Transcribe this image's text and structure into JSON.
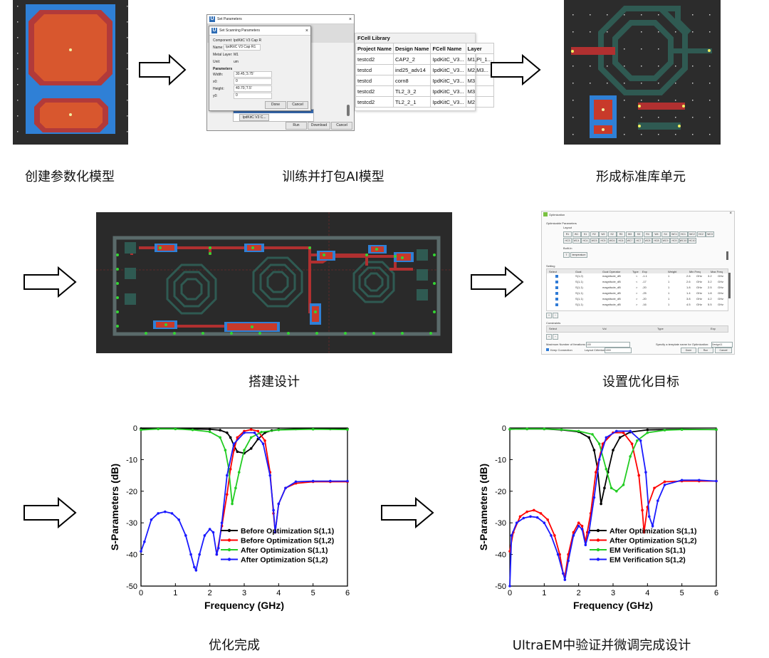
{
  "captions": {
    "c1": "创建参数化模型",
    "c2": "训练并打包AI模型",
    "c3": "形成标准库单元",
    "c4": "搭建设计",
    "c5": "设置优化目标",
    "c6": "优化完成",
    "c7": "UltraEM中验证并微调完成设计"
  },
  "set_params_dialog": {
    "outer_title": "Set Parameters",
    "inner_title": "Set Scanning Parameters",
    "component": "Component: IpdKitC V3 Cap R",
    "name_label": "Name:",
    "name_value": "IpdKitC V3 Cap R1",
    "metal_layer_label": "Metal Layer:",
    "metal_layer_value": "M1",
    "unit_label": "Unit:",
    "unit_value": "um",
    "parameters_label": "Parameters",
    "params": [
      {
        "label": "Width:",
        "value": "30.45,'3.75'"
      },
      {
        "label": "x0:",
        "value": "0"
      },
      {
        "label": "Height:",
        "value": "40.70,'7.5'"
      },
      {
        "label": "y0:",
        "value": "0"
      }
    ],
    "done": "Done",
    "cancel": "Cancel",
    "list_item": "IpdKitC V3 C...",
    "run": "Run",
    "download": "Download",
    "cancel2": "Cancel"
  },
  "fcell_library": {
    "title": "FCell Library",
    "headers": [
      "Project Name",
      "Design Name",
      "FCell Name",
      "Layer"
    ],
    "rows": [
      [
        "testcd2",
        "CAP2_2",
        "IpdKitC_V3...",
        "M1,PI_1..."
      ],
      [
        "testcd",
        "ind25_adv14",
        "IpdKitC_V3...",
        "M2,M3..."
      ],
      [
        "testcd",
        "corn8",
        "IpdKitC_V3...",
        "M3"
      ],
      [
        "testcd2",
        "TL2_3_2",
        "IpdKitC_V3...",
        "M3"
      ],
      [
        "testcd2",
        "TL2_2_1",
        "IpdKitC_V3...",
        "M2"
      ]
    ]
  },
  "optimization_dialog": {
    "title": "Optimization",
    "optimizable_label": "Optimizable Parameters",
    "layout_label": "Layout",
    "chips_row1": [
      "R1",
      "W1",
      "S1",
      "R2",
      "W2",
      "S2",
      "R3",
      "W3",
      "S3",
      "R4",
      "W4",
      "S4",
      "WC1",
      "HC1",
      "WC2",
      "HC2",
      "WC3"
    ],
    "chips_row2": [
      "HC3",
      "WC4",
      "HC4",
      "WC5",
      "HC5",
      "WC6",
      "HC6",
      "WC7",
      "HC7",
      "WC8",
      "HC8",
      "WC9",
      "HC9",
      "WC10",
      "HC10"
    ],
    "builtin_label": "Built-In",
    "builtin_chips": [
      "T",
      "temperature"
    ],
    "setting_label": "Setting",
    "table_headers": [
      "Select",
      "Goal",
      "Goal Operator",
      "Type",
      "Exp",
      "Weight",
      "Min Freq",
      "",
      "Max Freq",
      ""
    ],
    "rows": [
      [
        "S(1,2)",
        "magnitude_dB",
        "<",
        "-1.1",
        "1",
        "2.6",
        "GHz",
        "3.2",
        "GHz"
      ],
      [
        "S(1,1)",
        "magnitude_dB",
        "<",
        "-17",
        "1",
        "2.6",
        "GHz",
        "3.2",
        "GHz"
      ],
      [
        "S(1,1)",
        "magnitude_dB",
        ">",
        "-20",
        "1",
        "1.8",
        "GHz",
        "2.5",
        "GHz"
      ],
      [
        "S(1,1)",
        "magnitude_dB",
        ">",
        "-25",
        "1",
        "1.4",
        "GHz",
        "1.8",
        "GHz"
      ],
      [
        "S(1,1)",
        "magnitude_dB",
        ">",
        "-20",
        "1",
        "3.8",
        "GHz",
        "4.2",
        "GHz"
      ],
      [
        "S(1,1)",
        "magnitude_dB",
        ">",
        "-16",
        "1",
        "4.5",
        "GHz",
        "5.5",
        "GHz"
      ]
    ],
    "constraints_label": "Constraints",
    "constraint_headers": [
      "Select",
      "Vol",
      "Type",
      "Exp"
    ],
    "max_iter_label": "Maximum Number of Iterations:",
    "max_iter_value": "100",
    "template_label": "Specify a template name for Optimization:",
    "template_value": "Design11",
    "keep_connection": "Keep Connection",
    "layout_criterion_label": "Layout Criterion:",
    "layout_criterion_value": "1000",
    "done": "Done",
    "run": "Run",
    "cancel": "Cancel"
  },
  "chart_data": [
    {
      "type": "line",
      "title": "",
      "xlabel": "Frequency (GHz)",
      "ylabel": "S-Parameters (dB)",
      "xlim": [
        0,
        6
      ],
      "ylim": [
        -50,
        0
      ],
      "xticks": [
        "0",
        "1",
        "2",
        "3",
        "4",
        "5",
        "6"
      ],
      "yticks": [
        "0",
        "-10",
        "-20",
        "-30",
        "-40",
        "-50"
      ],
      "legend_position": "bottom-right",
      "series": [
        {
          "name": "Before Optimization S(1,1)",
          "color": "#000000",
          "x": [
            0,
            0.5,
            1,
            1.5,
            2,
            2.3,
            2.5,
            2.6,
            2.7,
            2.8,
            3,
            3.2,
            3.4,
            3.6,
            3.8,
            4,
            4.5,
            5,
            5.5,
            6
          ],
          "y": [
            -0.2,
            -0.2,
            -0.2,
            -0.3,
            -0.4,
            -0.7,
            -1.5,
            -3,
            -5.5,
            -7.5,
            -8,
            -6.5,
            -3.5,
            -1.5,
            -0.8,
            -0.5,
            -0.3,
            -0.3,
            -0.3,
            -0.3
          ]
        },
        {
          "name": "Before Optimization S(1,2)",
          "color": "#ff0000",
          "x": [
            2.2,
            2.35,
            2.5,
            2.6,
            2.7,
            2.8,
            3,
            3.2,
            3.4,
            3.6,
            3.75,
            3.85,
            3.9,
            4,
            4.2,
            4.5,
            5,
            5.5,
            6
          ],
          "y": [
            -40,
            -31,
            -21,
            -13,
            -7,
            -3,
            -1,
            -0.5,
            -1,
            -4,
            -14,
            -27,
            -33,
            -24,
            -19,
            -17.5,
            -17,
            -17,
            -17
          ]
        },
        {
          "name": "After Optimization S(1,1)",
          "color": "#22cc22",
          "x": [
            0,
            0.5,
            1,
            1.5,
            2,
            2.3,
            2.45,
            2.55,
            2.65,
            2.75,
            2.85,
            3,
            3.2,
            3.5,
            4,
            5,
            6
          ],
          "y": [
            -0.6,
            -0.3,
            -0.3,
            -0.6,
            -1.2,
            -3,
            -7,
            -13,
            -24,
            -19,
            -14,
            -7,
            -3,
            -1.3,
            -0.6,
            -0.4,
            -0.5
          ]
        },
        {
          "name": "After Optimization S(1,2)",
          "color": "#1a1aff",
          "x": [
            0,
            0.1,
            0.3,
            0.5,
            0.7,
            0.9,
            1.1,
            1.3,
            1.45,
            1.55,
            1.6,
            1.7,
            1.85,
            2,
            2.1,
            2.2,
            2.25,
            2.35,
            2.5,
            2.7,
            3,
            3.3,
            3.55,
            3.75,
            3.85,
            3.9,
            4,
            4.2,
            4.5,
            5,
            5.5,
            6
          ],
          "y": [
            -39,
            -36,
            -29,
            -27,
            -26.5,
            -27,
            -29,
            -34,
            -40,
            -44,
            -45,
            -40,
            -34,
            -32,
            -33,
            -40,
            -38,
            -30,
            -15,
            -5,
            -1.5,
            -1.5,
            -5,
            -15,
            -26,
            -33,
            -24,
            -19,
            -17,
            -16.8,
            -16.8,
            -16.8
          ]
        }
      ]
    },
    {
      "type": "line",
      "title": "",
      "xlabel": "Frequency (GHz)",
      "ylabel": "S-Parameters (dB)",
      "xlim": [
        0,
        6
      ],
      "ylim": [
        -50,
        0
      ],
      "xticks": [
        "0",
        "1",
        "2",
        "3",
        "4",
        "5",
        "6"
      ],
      "yticks": [
        "0",
        "-10",
        "-20",
        "-30",
        "-40",
        "-50"
      ],
      "legend_position": "bottom-right",
      "series": [
        {
          "name": "After Optimization S(1,1)",
          "color": "#000000",
          "x": [
            0,
            0.5,
            1,
            1.5,
            2,
            2.3,
            2.45,
            2.55,
            2.65,
            2.75,
            2.85,
            3,
            3.2,
            3.5,
            4,
            5,
            6
          ],
          "y": [
            -0.4,
            -0.3,
            -0.3,
            -0.6,
            -1.2,
            -3,
            -7,
            -13,
            -24,
            -19,
            -14,
            -7,
            -3,
            -1.3,
            -0.6,
            -0.4,
            -0.5
          ]
        },
        {
          "name": "After Optimization S(1,2)",
          "color": "#ff0000",
          "x": [
            0,
            0.1,
            0.3,
            0.5,
            0.7,
            0.9,
            1.1,
            1.3,
            1.45,
            1.55,
            1.6,
            1.7,
            1.85,
            2,
            2.1,
            2.2,
            2.25,
            2.35,
            2.5,
            2.7,
            3,
            3.3,
            3.55,
            3.75,
            3.85,
            3.9,
            4,
            4.2,
            4.5,
            5,
            5.5,
            6
          ],
          "y": [
            -39,
            -33,
            -28,
            -26.5,
            -26,
            -27,
            -29,
            -34,
            -40,
            -46,
            -47,
            -40,
            -33,
            -30,
            -31,
            -36,
            -33,
            -27,
            -14,
            -5,
            -1.5,
            -1.5,
            -5,
            -15,
            -26,
            -33,
            -25,
            -19,
            -17,
            -16.8,
            -16.8,
            -16.8
          ]
        },
        {
          "name": "EM Verification S(1,1)",
          "color": "#22cc22",
          "x": [
            0,
            0.5,
            1,
            1.5,
            2,
            2.4,
            2.6,
            2.8,
            2.95,
            3.1,
            3.3,
            3.5,
            3.7,
            4,
            4.5,
            5,
            6
          ],
          "y": [
            -0.4,
            -0.3,
            -0.3,
            -0.5,
            -1,
            -2,
            -5,
            -13,
            -19,
            -20,
            -18,
            -9,
            -4,
            -1.5,
            -0.7,
            -0.5,
            -0.5
          ]
        },
        {
          "name": "EM Verification S(1,2)",
          "color": "#1a1aff",
          "x": [
            0,
            0.05,
            0.2,
            0.4,
            0.6,
            0.8,
            1,
            1.2,
            1.4,
            1.55,
            1.6,
            1.7,
            1.85,
            2,
            2.1,
            2.2,
            2.3,
            2.45,
            2.6,
            2.8,
            3.1,
            3.5,
            3.8,
            3.95,
            4.05,
            4.15,
            4.3,
            4.5,
            5,
            5.5,
            6
          ],
          "y": [
            -50,
            -34,
            -30,
            -28.5,
            -28,
            -28.3,
            -30,
            -34,
            -40,
            -46,
            -48,
            -42,
            -34,
            -31,
            -32,
            -37,
            -33,
            -22,
            -10,
            -3,
            -1,
            -1,
            -4,
            -14,
            -28,
            -31,
            -23,
            -18,
            -16.5,
            -16.5,
            -16.8
          ]
        }
      ]
    }
  ]
}
